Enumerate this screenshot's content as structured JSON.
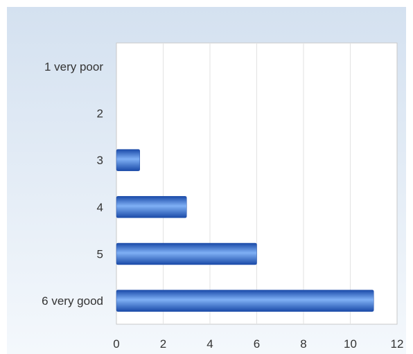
{
  "chart_data": {
    "type": "bar",
    "orientation": "horizontal",
    "categories": [
      "1 very poor",
      "2",
      "3",
      "4",
      "5",
      "6 very good"
    ],
    "values": [
      0,
      0,
      1,
      3,
      6,
      11
    ],
    "title": "",
    "xlabel": "",
    "ylabel": "",
    "xlim": [
      0,
      12
    ],
    "x_ticks": [
      0,
      2,
      4,
      6,
      8,
      10,
      12
    ],
    "grid": "vertical",
    "legend": "none",
    "bar_color": "#2f6bd6",
    "bar_color_light": "#7fb0f5",
    "bar_color_dark": "#1a4aa8"
  }
}
